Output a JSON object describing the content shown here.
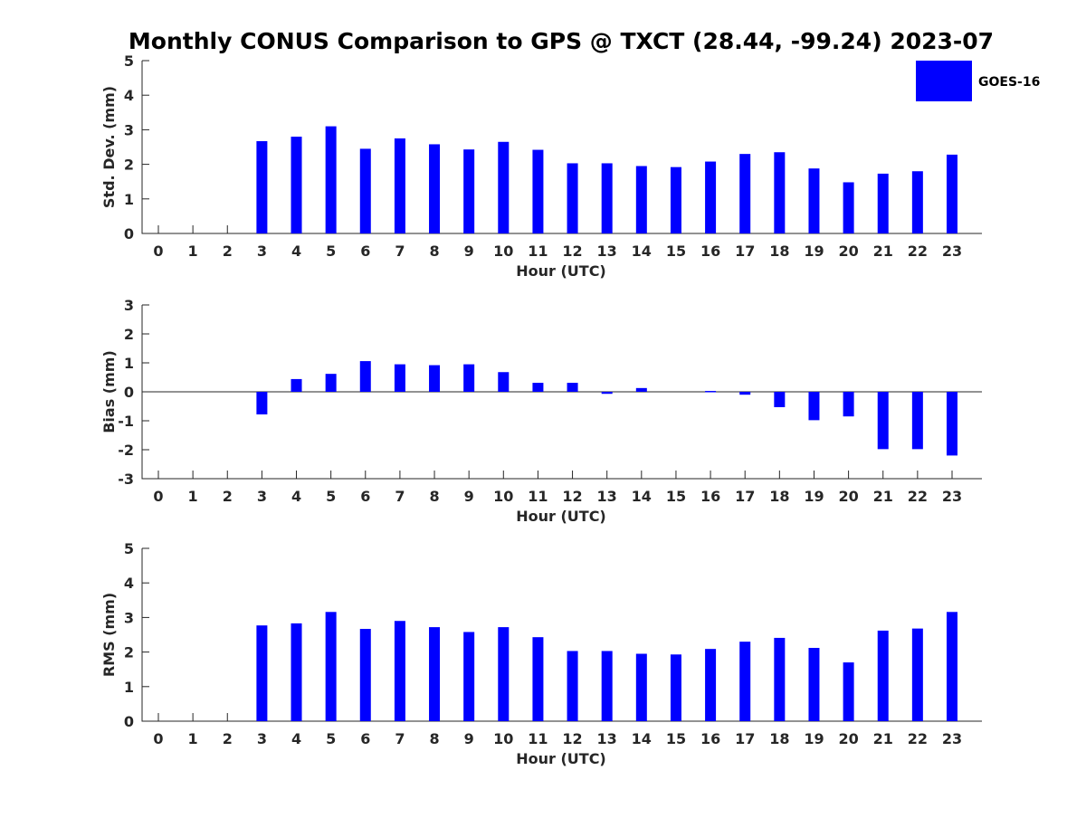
{
  "title": "Monthly CONUS Comparison to GPS @ TXCT (28.44, -99.24) 2023-07",
  "legend": {
    "label": "GOES-16",
    "color": "#0000ff",
    "placement": "top-right"
  },
  "chart_data": [
    {
      "type": "bar",
      "name": "std-dev",
      "ylabel": "Std. Dev. (mm)",
      "xlabel": "Hour (UTC)",
      "ylim": [
        0,
        5
      ],
      "yticks": [
        "0",
        "1",
        "2",
        "3",
        "4",
        "5"
      ],
      "categories": [
        "0",
        "1",
        "2",
        "3",
        "4",
        "5",
        "6",
        "7",
        "8",
        "9",
        "10",
        "11",
        "12",
        "13",
        "14",
        "15",
        "16",
        "17",
        "18",
        "19",
        "20",
        "21",
        "22",
        "23"
      ],
      "values": [
        null,
        null,
        null,
        2.67,
        2.8,
        3.1,
        2.45,
        2.75,
        2.58,
        2.43,
        2.65,
        2.42,
        2.03,
        2.03,
        1.95,
        1.92,
        2.08,
        2.3,
        2.35,
        1.88,
        1.48,
        1.73,
        1.8,
        2.28
      ]
    },
    {
      "type": "bar",
      "name": "bias",
      "ylabel": "Bias (mm)",
      "xlabel": "Hour (UTC)",
      "ylim": [
        -3,
        3
      ],
      "yticks": [
        "-3",
        "-2",
        "-1",
        "0",
        "1",
        "2",
        "3"
      ],
      "categories": [
        "0",
        "1",
        "2",
        "3",
        "4",
        "5",
        "6",
        "7",
        "8",
        "9",
        "10",
        "11",
        "12",
        "13",
        "14",
        "15",
        "16",
        "17",
        "18",
        "19",
        "20",
        "21",
        "22",
        "23"
      ],
      "values": [
        null,
        null,
        null,
        -0.78,
        0.44,
        0.62,
        1.06,
        0.95,
        0.92,
        0.95,
        0.68,
        0.31,
        0.31,
        -0.07,
        0.13,
        0.0,
        0.03,
        -0.1,
        -0.53,
        -0.98,
        -0.85,
        -1.98,
        -1.98,
        -2.2
      ]
    },
    {
      "type": "bar",
      "name": "rms",
      "ylabel": "RMS (mm)",
      "xlabel": "Hour (UTC)",
      "ylim": [
        0,
        5
      ],
      "yticks": [
        "0",
        "1",
        "2",
        "3",
        "4",
        "5"
      ],
      "categories": [
        "0",
        "1",
        "2",
        "3",
        "4",
        "5",
        "6",
        "7",
        "8",
        "9",
        "10",
        "11",
        "12",
        "13",
        "14",
        "15",
        "16",
        "17",
        "18",
        "19",
        "20",
        "21",
        "22",
        "23"
      ],
      "values": [
        null,
        null,
        null,
        2.77,
        2.83,
        3.16,
        2.67,
        2.9,
        2.72,
        2.58,
        2.72,
        2.43,
        2.03,
        2.03,
        1.95,
        1.93,
        2.09,
        2.3,
        2.41,
        2.12,
        1.7,
        2.62,
        2.68,
        3.16
      ]
    }
  ]
}
